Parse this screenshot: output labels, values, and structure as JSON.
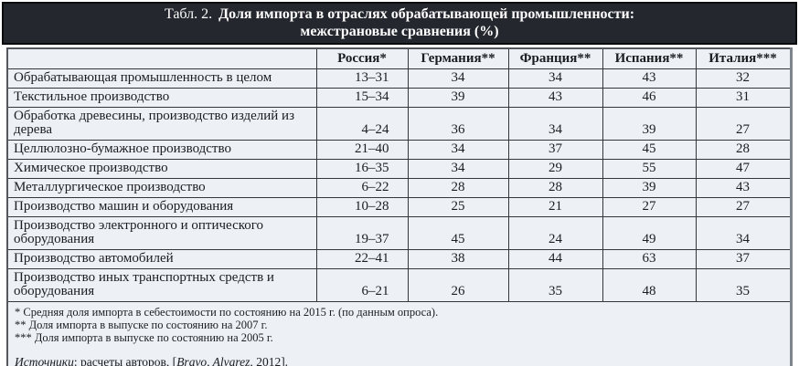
{
  "title": {
    "prefix": "Табл. 2.",
    "line1": "Доля импорта в отраслях обрабатывающей промышленности:",
    "line2": "межстрановые сравнения (%)"
  },
  "table": {
    "columns": [
      "Россия*",
      "Германия**",
      "Франция**",
      "Испания**",
      "Италия***"
    ],
    "rows": [
      {
        "label": "Обрабатывающая промышленность в целом",
        "values": [
          "13–31",
          "34",
          "34",
          "43",
          "32"
        ]
      },
      {
        "label": "Текстильное производство",
        "values": [
          "15–34",
          "39",
          "43",
          "46",
          "31"
        ]
      },
      {
        "label": "Обработка древесины, производство изделий из дерева",
        "values": [
          "4–24",
          "36",
          "34",
          "39",
          "27"
        ]
      },
      {
        "label": "Целлюлозно-бумажное производство",
        "values": [
          "21–40",
          "34",
          "37",
          "45",
          "28"
        ]
      },
      {
        "label": "Химическое производство",
        "values": [
          "16–35",
          "34",
          "29",
          "55",
          "47"
        ]
      },
      {
        "label": "Металлургическое производство",
        "values": [
          "6–22",
          "28",
          "28",
          "39",
          "43"
        ]
      },
      {
        "label": "Производство машин и оборудования",
        "values": [
          "10–28",
          "25",
          "21",
          "27",
          "27"
        ]
      },
      {
        "label": "Производство электронного и оптического оборудования",
        "values": [
          "19–37",
          "45",
          "24",
          "49",
          "34"
        ]
      },
      {
        "label": "Производство автомобилей",
        "values": [
          "22–41",
          "38",
          "44",
          "63",
          "37"
        ]
      },
      {
        "label": "Производство иных транспортных средств и оборудования",
        "values": [
          "6–21",
          "26",
          "35",
          "48",
          "35"
        ]
      }
    ]
  },
  "footnotes": [
    "* Средняя доля импорта в себестоимости по состоянию на 2015 г. (по данным опроса).",
    "** Доля импорта в выпуске по состоянию на 2007 г.",
    "*** Доля импорта в выпуске по состоянию на 2005 г."
  ],
  "sources": {
    "label": "Источники",
    "mid": ": расчеты авторов, [",
    "authors": "Bravo, Alvarez,",
    "tail": " 2012]."
  },
  "colors": {
    "band_background": "#24272e",
    "band_text": "#ffffff",
    "cell_background": "#edf0f4",
    "inner_border": "#33373c",
    "outer_border": "#7e858c"
  }
}
